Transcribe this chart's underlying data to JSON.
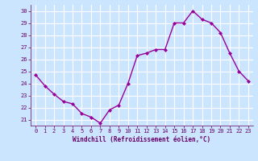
{
  "x": [
    0,
    1,
    2,
    3,
    4,
    5,
    6,
    7,
    8,
    9,
    10,
    11,
    12,
    13,
    14,
    15,
    16,
    17,
    18,
    19,
    20,
    21,
    22,
    23
  ],
  "y": [
    24.7,
    23.8,
    23.1,
    22.5,
    22.3,
    21.5,
    21.2,
    20.7,
    21.8,
    22.2,
    24.0,
    26.3,
    26.5,
    26.8,
    26.8,
    29.0,
    29.0,
    30.0,
    29.3,
    29.0,
    28.2,
    26.5,
    25.0,
    24.2
  ],
  "line_color": "#990099",
  "marker": "D",
  "marker_size": 2.0,
  "line_width": 1.0,
  "bg_color": "#cce5ff",
  "grid_color": "#ffffff",
  "xlabel": "Windchill (Refroidissement éolien,°C)",
  "xlabel_color": "#660066",
  "tick_color": "#660066",
  "label_fontsize": 5.0,
  "xlabel_fontsize": 5.5,
  "ylim": [
    20.5,
    30.5
  ],
  "xlim": [
    -0.5,
    23.5
  ],
  "yticks": [
    21,
    22,
    23,
    24,
    25,
    26,
    27,
    28,
    29,
    30
  ],
  "xticks": [
    0,
    1,
    2,
    3,
    4,
    5,
    6,
    7,
    8,
    9,
    10,
    11,
    12,
    13,
    14,
    15,
    16,
    17,
    18,
    19,
    20,
    21,
    22,
    23
  ]
}
